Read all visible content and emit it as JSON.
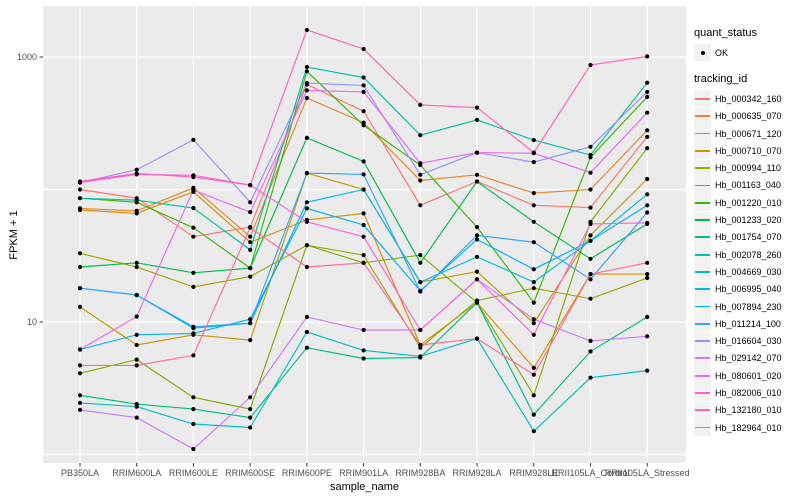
{
  "colors": {
    "panel_bg": "#ebebeb",
    "grid": "#ffffff",
    "point": "#000000",
    "axis_text": "#4d4d4d",
    "tick_mark": "#333333",
    "legend_key_bg": "#f2f2f2"
  },
  "axes": {
    "x_title": "sample_name",
    "y_title": "FPKM + 1",
    "y_tick_labels": [
      "1000",
      "10"
    ],
    "y_tick_values": [
      1000,
      10
    ]
  },
  "legend": {
    "quant_title": "quant_status",
    "quant_item_label": "OK",
    "tracking_title": "tracking_id"
  },
  "chart_data": {
    "type": "line",
    "title": "",
    "xlabel": "sample_name",
    "ylabel": "FPKM + 1",
    "yscale": "log10",
    "ylim": [
      1,
      2000
    ],
    "y_breaks_labeled": [
      10,
      1000
    ],
    "y_gridlines": [
      1,
      10,
      100,
      1000
    ],
    "grid": true,
    "legend_position": "right",
    "point_marker": "black dot (quant_status OK)",
    "categories": [
      "PB350LA",
      "RRIM600LA",
      "RRIM600LE",
      "RRIM600SE",
      "RRIM600PE",
      "RRIM901LA",
      "RRIM928BA",
      "RRIM928LA",
      "RRIM928LE",
      "RRII105LA_Control",
      "RRII105LA_Stressed"
    ],
    "series": [
      {
        "name": "Hb_000342_160",
        "color": "#F8766D",
        "values": [
          100,
          86,
          44,
          52,
          620,
          390,
          76,
          115,
          76,
          73,
          250
        ]
      },
      {
        "name": "Hb_000635_070",
        "color": "#EA8331",
        "values": [
          72,
          69,
          103,
          44,
          490,
          320,
          117,
          129,
          94,
          100,
          280
        ]
      },
      {
        "name": "Hb_000671_120",
        "color": "#D89000",
        "values": [
          70,
          66,
          96,
          40,
          59,
          66,
          6.7,
          14,
          4.5,
          23,
          23
        ]
      },
      {
        "name": "Hb_000710_070",
        "color": "#C09B00",
        "values": [
          13,
          6.7,
          8,
          7.3,
          133,
          100,
          20,
          24,
          9.8,
          45,
          120
        ]
      },
      {
        "name": "Hb_000994_110",
        "color": "#A3A500",
        "values": [
          33,
          26,
          18.4,
          22,
          38,
          32,
          6.4,
          14.5,
          18,
          15,
          21.5
        ]
      },
      {
        "name": "Hb_001163_040",
        "color": "#7CAE00",
        "values": [
          4.1,
          5.2,
          2.7,
          2.2,
          38,
          28,
          32,
          14,
          2.8,
          57,
          205
        ]
      },
      {
        "name": "Hb_001220_010",
        "color": "#39B600",
        "values": [
          86,
          80,
          51.5,
          25.5,
          780,
          305,
          153,
          52,
          14,
          175,
          500
        ]
      },
      {
        "name": "Hb_001233_020",
        "color": "#00BB4E",
        "values": [
          26,
          28,
          23.5,
          25.5,
          245,
          163,
          28,
          115,
          57,
          30,
          55
        ]
      },
      {
        "name": "Hb_001754_070",
        "color": "#00BF7D",
        "values": [
          2.8,
          2.4,
          2.2,
          1.9,
          6.4,
          5.3,
          5.4,
          14,
          2.0,
          6.0,
          10.9
        ]
      },
      {
        "name": "Hb_002078_260",
        "color": "#00C1A3",
        "values": [
          86,
          83,
          72.5,
          35,
          840,
          700,
          257,
          335,
          236,
          182,
          640
        ]
      },
      {
        "name": "Hb_004669_030",
        "color": "#00BFC4",
        "values": [
          2.45,
          2.3,
          1.7,
          1.6,
          8.4,
          6.1,
          5.5,
          7.5,
          1.5,
          3.8,
          4.3
        ]
      },
      {
        "name": "Hb_006995_040",
        "color": "#00BAE0",
        "values": [
          18,
          16,
          9,
          9.8,
          80,
          100,
          20,
          31,
          20,
          41,
          92
        ]
      },
      {
        "name": "Hb_007894_230",
        "color": "#00B0F6",
        "values": [
          6.2,
          8,
          8.2,
          10.5,
          72,
          54,
          17.2,
          42,
          25,
          41,
          76
        ]
      },
      {
        "name": "Hb_011214_100",
        "color": "#35A2FF",
        "values": [
          18,
          16,
          9.2,
          9.8,
          133,
          130,
          17,
          45,
          40,
          21,
          67
        ]
      },
      {
        "name": "Hb_016604_030",
        "color": "#9590FF",
        "values": [
          113,
          141,
          237,
          80,
          635,
          610,
          129,
          190,
          161,
          210,
          545
        ]
      },
      {
        "name": "Hb_029142_070",
        "color": "#C77CFF",
        "values": [
          2.17,
          1.9,
          1.1,
          2.7,
          10.9,
          8.7,
          8.7,
          21,
          10.5,
          7.2,
          7.8
        ]
      },
      {
        "name": "Hb_080601_020",
        "color": "#E76BF3",
        "values": [
          6.2,
          11,
          99,
          67.5,
          560,
          545,
          158,
          190,
          188,
          134,
          380
        ]
      },
      {
        "name": "Hb_082006_010",
        "color": "#FA62DB",
        "values": [
          113,
          130,
          128,
          108,
          57,
          44,
          8.7,
          21,
          8.0,
          55,
          56
        ]
      },
      {
        "name": "Hb_132180_010",
        "color": "#FF62BC",
        "values": [
          115,
          132,
          124,
          108,
          1600,
          1150,
          435,
          415,
          190,
          870,
          1010
        ]
      },
      {
        "name": "Hb_182964_010",
        "color": "#FF6A98",
        "values": [
          4.7,
          4.7,
          5.6,
          51.5,
          26,
          28,
          6.7,
          7.5,
          4.0,
          23,
          28
        ]
      }
    ]
  }
}
